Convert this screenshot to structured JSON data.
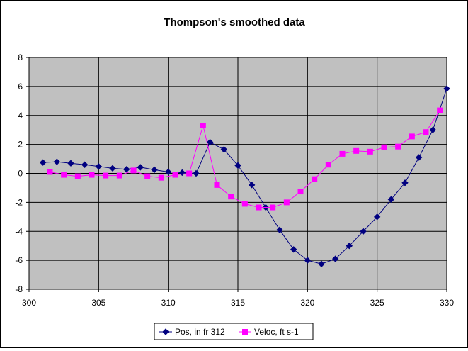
{
  "chart_data": {
    "type": "line",
    "title": "Thompson's smoothed data",
    "xlabel": "",
    "ylabel": "",
    "xlim": [
      300,
      330
    ],
    "ylim": [
      -8,
      8
    ],
    "x_ticks": [
      "300",
      "305",
      "310",
      "315",
      "320",
      "325",
      "330"
    ],
    "y_ticks": [
      "8",
      "6",
      "4",
      "2",
      "0",
      "-2",
      "-4",
      "-6",
      "-8"
    ],
    "grid": "major gridlines on both axes",
    "plot_background": "#c0c0c0",
    "legend_position": "bottom",
    "series": [
      {
        "name": "Pos, in fr 312",
        "color": "#000080",
        "marker": "diamond",
        "points": [
          [
            301,
            0.75
          ],
          [
            302,
            0.8
          ],
          [
            303,
            0.7
          ],
          [
            304,
            0.6
          ],
          [
            305,
            0.48
          ],
          [
            306,
            0.35
          ],
          [
            307,
            0.28
          ],
          [
            308,
            0.42
          ],
          [
            309,
            0.25
          ],
          [
            310,
            0.1
          ],
          [
            311,
            0.05
          ],
          [
            312,
            0.0
          ],
          [
            313,
            2.15
          ],
          [
            314,
            1.65
          ],
          [
            315,
            0.55
          ],
          [
            316,
            -0.8
          ],
          [
            317,
            -2.35
          ],
          [
            318,
            -3.9
          ],
          [
            319,
            -5.25
          ],
          [
            320,
            -6.0
          ],
          [
            321,
            -6.25
          ],
          [
            322,
            -5.9
          ],
          [
            323,
            -5.0
          ],
          [
            324,
            -4.0
          ],
          [
            325,
            -3.0
          ],
          [
            326,
            -1.8
          ],
          [
            327,
            -0.65
          ],
          [
            328,
            1.1
          ],
          [
            329,
            3.0
          ],
          [
            330,
            5.85
          ]
        ]
      },
      {
        "name": "Veloc, ft s-1",
        "color": "#ff00ff",
        "marker": "square",
        "points": [
          [
            301.5,
            0.1
          ],
          [
            302.5,
            -0.1
          ],
          [
            303.5,
            -0.2
          ],
          [
            304.5,
            -0.1
          ],
          [
            305.5,
            -0.15
          ],
          [
            306.5,
            -0.15
          ],
          [
            307.5,
            0.2
          ],
          [
            308.5,
            -0.2
          ],
          [
            309.5,
            -0.3
          ],
          [
            310.5,
            -0.1
          ],
          [
            311.5,
            0.0
          ],
          [
            312.5,
            3.3
          ],
          [
            313.5,
            -0.8
          ],
          [
            314.5,
            -1.6
          ],
          [
            315.5,
            -2.1
          ],
          [
            316.5,
            -2.35
          ],
          [
            317.5,
            -2.35
          ],
          [
            318.5,
            -2.0
          ],
          [
            319.5,
            -1.25
          ],
          [
            320.5,
            -0.4
          ],
          [
            321.5,
            0.6
          ],
          [
            322.5,
            1.35
          ],
          [
            323.5,
            1.55
          ],
          [
            324.5,
            1.5
          ],
          [
            325.5,
            1.8
          ],
          [
            326.5,
            1.85
          ],
          [
            327.5,
            2.55
          ],
          [
            328.5,
            2.85
          ],
          [
            329.5,
            4.35
          ]
        ]
      }
    ]
  }
}
